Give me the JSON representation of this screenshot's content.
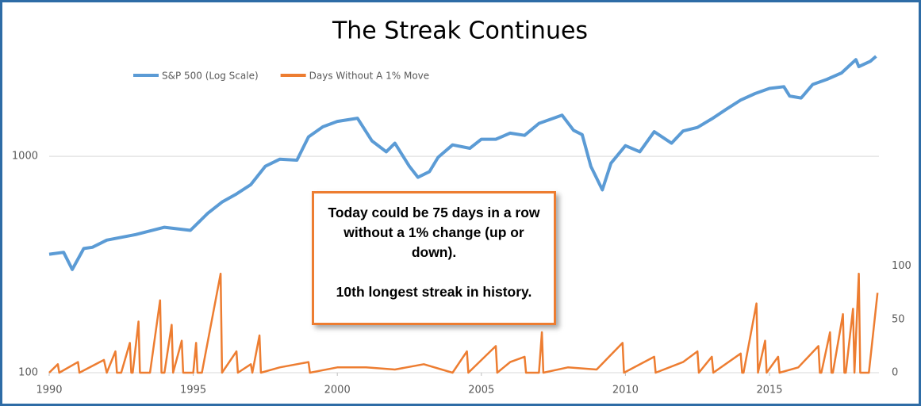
{
  "chart_data": {
    "type": "line",
    "title": "The Streak Continues",
    "xlim": [
      1990,
      2018.8
    ],
    "xticks": [
      1990,
      1995,
      2000,
      2005,
      2010,
      2015
    ],
    "ylim": [
      100,
      3000
    ],
    "yticks": [
      100,
      1000
    ],
    "ylog": true,
    "y2lim": [
      0,
      300
    ],
    "y2ticks": [
      0,
      50,
      100
    ],
    "grid": true,
    "legend": "top-left",
    "annotation": [
      "Today could be 75 days in a row without a 1% change (up or down).",
      "10th longest streak in history."
    ],
    "series": [
      {
        "name": "S&P 500 (Log Scale)",
        "color": "#5b9bd5",
        "x": [
          1990.0,
          1990.5,
          1990.8,
          1991.2,
          1991.5,
          1992.0,
          1993.0,
          1994.0,
          1994.9,
          1995.5,
          1996.0,
          1996.5,
          1997.0,
          1997.5,
          1998.0,
          1998.6,
          1999.0,
          1999.5,
          2000.0,
          2000.7,
          2001.2,
          2001.7,
          2002.0,
          2002.5,
          2002.8,
          2003.2,
          2003.5,
          2004.0,
          2004.6,
          2005.0,
          2005.5,
          2006.0,
          2006.5,
          2007.0,
          2007.8,
          2008.2,
          2008.5,
          2008.8,
          2009.2,
          2009.5,
          2010.0,
          2010.5,
          2011.0,
          2011.6,
          2012.0,
          2012.5,
          2013.0,
          2013.5,
          2014.0,
          2014.5,
          2015.0,
          2015.5,
          2015.7,
          2016.1,
          2016.5,
          2017.0,
          2017.5,
          2018.0,
          2018.1,
          2018.5,
          2018.7
        ],
        "values": [
          353,
          360,
          300,
          375,
          380,
          410,
          435,
          470,
          455,
          545,
          615,
          670,
          740,
          900,
          970,
          960,
          1230,
          1370,
          1450,
          1500,
          1180,
          1050,
          1150,
          900,
          800,
          850,
          990,
          1130,
          1090,
          1200,
          1200,
          1280,
          1250,
          1420,
          1550,
          1320,
          1260,
          900,
          700,
          930,
          1120,
          1050,
          1300,
          1150,
          1310,
          1360,
          1490,
          1650,
          1820,
          1950,
          2060,
          2100,
          1900,
          1860,
          2150,
          2270,
          2430,
          2800,
          2600,
          2750,
          2900
        ]
      },
      {
        "name": "Days Without A 1% Move",
        "color": "#ed7d31",
        "axis": "y2",
        "x": [
          1990.0,
          1990.3,
          1990.35,
          1991.0,
          1991.05,
          1991.9,
          1992.0,
          1992.3,
          1992.35,
          1992.5,
          1992.8,
          1992.85,
          1992.9,
          1993.1,
          1993.15,
          1993.5,
          1993.85,
          1993.9,
          1994.0,
          1994.25,
          1994.3,
          1994.6,
          1994.65,
          1995.0,
          1995.1,
          1995.15,
          1995.3,
          1995.95,
          1996.0,
          1996.5,
          1996.55,
          1997.0,
          1997.05,
          1997.3,
          1997.35,
          1998.0,
          1999.0,
          1999.05,
          2000.0,
          2001.0,
          2002.0,
          2003.0,
          2004.0,
          2004.5,
          2004.55,
          2005.5,
          2005.55,
          2006.0,
          2006.5,
          2006.55,
          2007.0,
          2007.1,
          2007.15,
          2008.0,
          2009.0,
          2009.9,
          2009.95,
          2011.0,
          2011.05,
          2012.0,
          2012.5,
          2012.55,
          2013.0,
          2013.05,
          2014.0,
          2014.05,
          2014.1,
          2014.55,
          2014.6,
          2014.85,
          2014.9,
          2015.3,
          2015.35,
          2016.0,
          2016.7,
          2016.75,
          2016.8,
          2017.1,
          2017.15,
          2017.2,
          2017.55,
          2017.6,
          2017.65,
          2017.9,
          2017.95,
          2018.1,
          2018.15,
          2018.45,
          2018.75
        ],
        "values": [
          0,
          8,
          0,
          10,
          0,
          12,
          0,
          20,
          0,
          0,
          28,
          0,
          0,
          48,
          0,
          0,
          68,
          0,
          0,
          45,
          0,
          30,
          0,
          0,
          28,
          0,
          0,
          93,
          0,
          20,
          0,
          8,
          0,
          35,
          0,
          5,
          10,
          0,
          5,
          5,
          3,
          8,
          0,
          20,
          0,
          25,
          0,
          10,
          15,
          0,
          0,
          38,
          0,
          5,
          3,
          28,
          0,
          15,
          0,
          10,
          20,
          0,
          15,
          0,
          18,
          0,
          0,
          65,
          0,
          30,
          0,
          15,
          0,
          5,
          25,
          0,
          0,
          38,
          0,
          0,
          55,
          0,
          0,
          60,
          0,
          93,
          0,
          0,
          75
        ]
      }
    ]
  }
}
